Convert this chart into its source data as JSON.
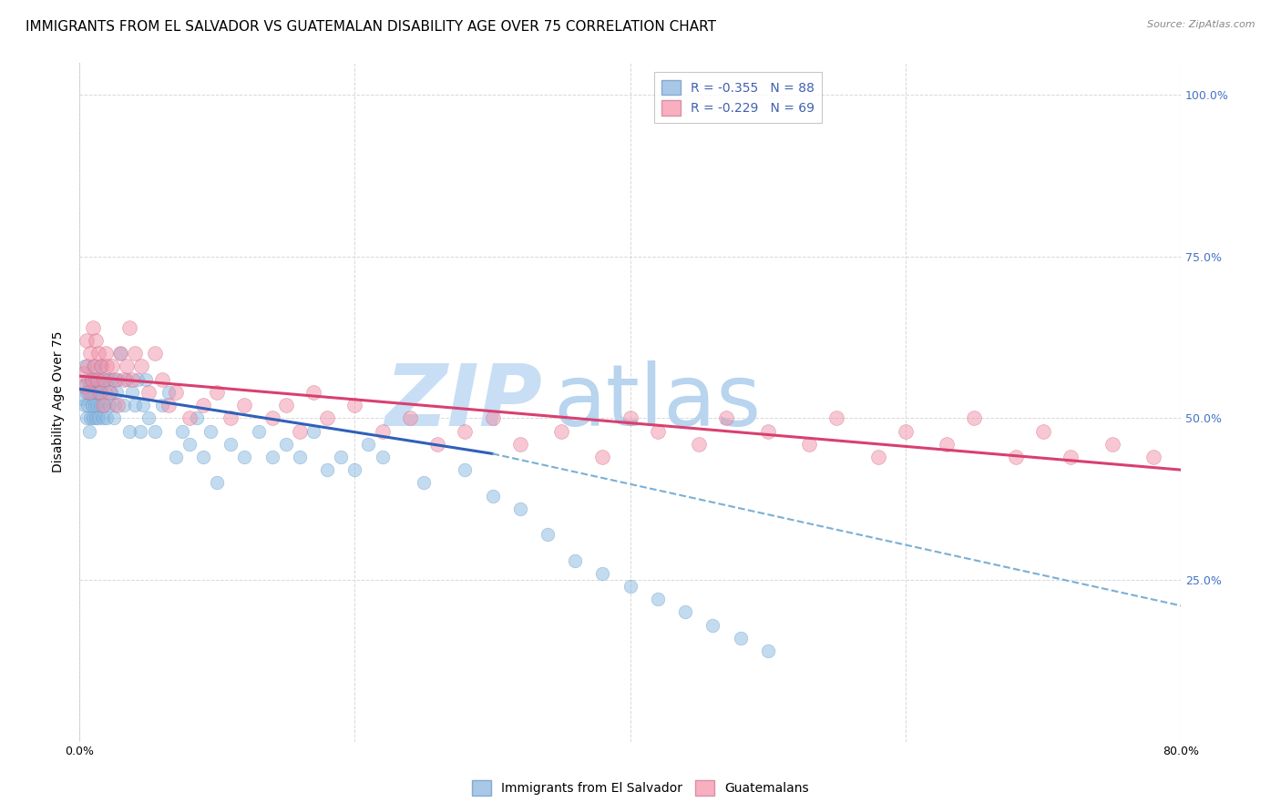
{
  "title": "IMMIGRANTS FROM EL SALVADOR VS GUATEMALAN DISABILITY AGE OVER 75 CORRELATION CHART",
  "source": "Source: ZipAtlas.com",
  "ylabel": "Disability Age Over 75",
  "x_min": 0.0,
  "x_max": 0.8,
  "y_min": 0.0,
  "y_max": 1.05,
  "legend_entries": [
    {
      "label": "R = -0.355   N = 88",
      "color": "#a8c8e8"
    },
    {
      "label": "R = -0.229   N = 69",
      "color": "#f8b0c0"
    }
  ],
  "scatter_el_salvador": {
    "color": "#89b8e0",
    "edge_color": "#6898c8",
    "alpha": 0.5,
    "size": 110,
    "x": [
      0.002,
      0.003,
      0.004,
      0.004,
      0.005,
      0.005,
      0.006,
      0.006,
      0.007,
      0.007,
      0.008,
      0.008,
      0.009,
      0.009,
      0.01,
      0.01,
      0.01,
      0.011,
      0.011,
      0.012,
      0.012,
      0.013,
      0.013,
      0.014,
      0.014,
      0.015,
      0.015,
      0.016,
      0.016,
      0.017,
      0.018,
      0.018,
      0.019,
      0.02,
      0.021,
      0.022,
      0.023,
      0.024,
      0.025,
      0.026,
      0.027,
      0.028,
      0.03,
      0.032,
      0.034,
      0.036,
      0.038,
      0.04,
      0.042,
      0.044,
      0.046,
      0.048,
      0.05,
      0.055,
      0.06,
      0.065,
      0.07,
      0.075,
      0.08,
      0.085,
      0.09,
      0.095,
      0.1,
      0.11,
      0.12,
      0.13,
      0.14,
      0.15,
      0.16,
      0.17,
      0.18,
      0.19,
      0.2,
      0.21,
      0.22,
      0.25,
      0.28,
      0.3,
      0.32,
      0.34,
      0.36,
      0.38,
      0.4,
      0.42,
      0.44,
      0.46,
      0.48,
      0.5
    ],
    "y": [
      0.53,
      0.55,
      0.52,
      0.58,
      0.54,
      0.5,
      0.56,
      0.52,
      0.55,
      0.48,
      0.54,
      0.5,
      0.56,
      0.52,
      0.54,
      0.5,
      0.58,
      0.52,
      0.56,
      0.5,
      0.54,
      0.52,
      0.56,
      0.5,
      0.54,
      0.52,
      0.56,
      0.54,
      0.58,
      0.5,
      0.56,
      0.52,
      0.54,
      0.5,
      0.56,
      0.52,
      0.54,
      0.56,
      0.5,
      0.52,
      0.54,
      0.56,
      0.6,
      0.52,
      0.56,
      0.48,
      0.54,
      0.52,
      0.56,
      0.48,
      0.52,
      0.56,
      0.5,
      0.48,
      0.52,
      0.54,
      0.44,
      0.48,
      0.46,
      0.5,
      0.44,
      0.48,
      0.4,
      0.46,
      0.44,
      0.48,
      0.44,
      0.46,
      0.44,
      0.48,
      0.42,
      0.44,
      0.42,
      0.46,
      0.44,
      0.4,
      0.42,
      0.38,
      0.36,
      0.32,
      0.28,
      0.26,
      0.24,
      0.22,
      0.2,
      0.18,
      0.16,
      0.14
    ]
  },
  "scatter_guatemalans": {
    "color": "#f090a8",
    "edge_color": "#d06880",
    "alpha": 0.5,
    "size": 130,
    "x": [
      0.003,
      0.004,
      0.005,
      0.006,
      0.007,
      0.008,
      0.009,
      0.01,
      0.011,
      0.012,
      0.013,
      0.014,
      0.015,
      0.016,
      0.017,
      0.018,
      0.019,
      0.02,
      0.022,
      0.024,
      0.026,
      0.028,
      0.03,
      0.032,
      0.034,
      0.036,
      0.038,
      0.04,
      0.045,
      0.05,
      0.055,
      0.06,
      0.065,
      0.07,
      0.08,
      0.09,
      0.1,
      0.11,
      0.12,
      0.14,
      0.15,
      0.16,
      0.17,
      0.18,
      0.2,
      0.22,
      0.24,
      0.26,
      0.28,
      0.3,
      0.32,
      0.35,
      0.38,
      0.4,
      0.42,
      0.45,
      0.47,
      0.5,
      0.53,
      0.55,
      0.58,
      0.6,
      0.63,
      0.65,
      0.68,
      0.7,
      0.72,
      0.75,
      0.78
    ],
    "y": [
      0.57,
      0.55,
      0.62,
      0.58,
      0.54,
      0.6,
      0.56,
      0.64,
      0.58,
      0.62,
      0.56,
      0.6,
      0.54,
      0.58,
      0.52,
      0.56,
      0.6,
      0.58,
      0.54,
      0.58,
      0.56,
      0.52,
      0.6,
      0.56,
      0.58,
      0.64,
      0.56,
      0.6,
      0.58,
      0.54,
      0.6,
      0.56,
      0.52,
      0.54,
      0.5,
      0.52,
      0.54,
      0.5,
      0.52,
      0.5,
      0.52,
      0.48,
      0.54,
      0.5,
      0.52,
      0.48,
      0.5,
      0.46,
      0.48,
      0.5,
      0.46,
      0.48,
      0.44,
      0.5,
      0.48,
      0.46,
      0.5,
      0.48,
      0.46,
      0.5,
      0.44,
      0.48,
      0.46,
      0.5,
      0.44,
      0.48,
      0.44,
      0.46,
      0.44
    ]
  },
  "trend_el_salvador": {
    "x_start": 0.0,
    "x_end": 0.3,
    "y_start": 0.545,
    "y_end": 0.445,
    "color": "#3060b8",
    "linewidth": 2.2,
    "linestyle": "-"
  },
  "trend_el_salvador_dashed": {
    "x_start": 0.3,
    "x_end": 0.8,
    "y_start": 0.445,
    "y_end": 0.21,
    "color": "#7bafd4",
    "linewidth": 1.5,
    "linestyle": "--"
  },
  "trend_guatemalans": {
    "x_start": 0.0,
    "x_end": 0.8,
    "y_start": 0.565,
    "y_end": 0.42,
    "color": "#d84070",
    "linewidth": 2.2,
    "linestyle": "-"
  },
  "background_color": "#ffffff",
  "grid_color": "#d8d8d8",
  "watermark_zip": "ZIP",
  "watermark_atlas": "atlas",
  "watermark_color_zip": "#c8def4",
  "watermark_color_atlas": "#b8d4ef",
  "watermark_fontsize": 68,
  "title_fontsize": 11,
  "label_fontsize": 10,
  "tick_fontsize": 9
}
